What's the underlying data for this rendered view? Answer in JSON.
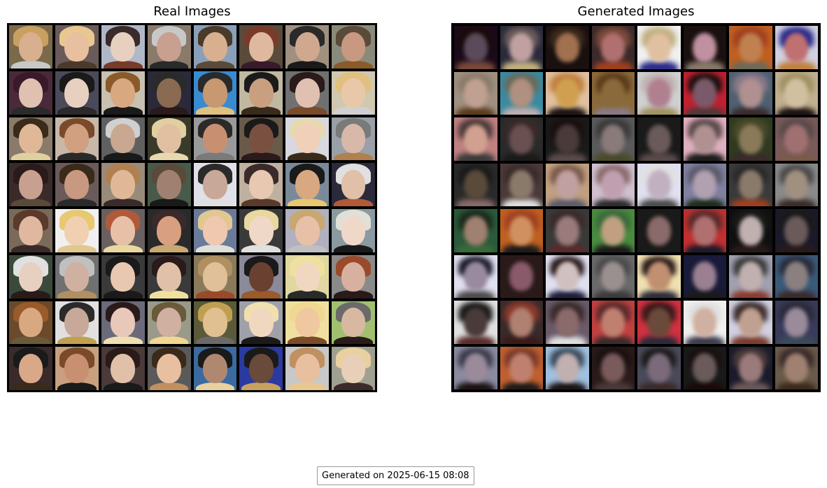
{
  "panels": {
    "real": {
      "title": "Real Images"
    },
    "generated": {
      "title": "Generated Images"
    }
  },
  "footer": {
    "text": "Generated on 2025-06-15 08:08"
  },
  "colors": {
    "real_bg": [
      "#7a6a4a",
      "#6a5a5a",
      "#b0b8c8",
      "#8a7a6a",
      "#8aa0b8",
      "#5a4a3a",
      "#a09080",
      "#8a8a7a",
      "#4a2a3a",
      "#4a4a5a",
      "#c8c0b0",
      "#2a2a3a",
      "#3a8ad0",
      "#c0b8a0",
      "#707070",
      "#d0c8b0",
      "#8a7a6a",
      "#c8b8a8",
      "#606060",
      "#3a3a2a",
      "#9a9a9a",
      "#6a5a4a",
      "#d8d8e0",
      "#9aa0a8",
      "#3a2a2a",
      "#6a5a5a",
      "#9a8a7a",
      "#4a5a4a",
      "#e0e0e8",
      "#c0b0a0",
      "#7a8a9a",
      "#2a2a3a",
      "#7a6a5a",
      "#f0f0f0",
      "#6a6060",
      "#2a2a2a",
      "#6a7a9a",
      "#3a3a3a",
      "#b0b0c0",
      "#8a9aa0",
      "#3a4a3a",
      "#707070",
      "#3a3a3a",
      "#3a3a3a",
      "#8a7a5a",
      "#8a8a9a",
      "#e0d8a0",
      "#8a8a8a",
      "#6a4a2a",
      "#e0e0e0",
      "#6a6a7a",
      "#9a9a8a",
      "#5a5a3a",
      "#a0a0a8",
      "#f0e0a0",
      "#a0c070",
      "#3a2a2a",
      "#c8a080",
      "#4a3a3a",
      "#5a5a5a",
      "#3a6aa0",
      "#2a3aa0",
      "#c8c8c8",
      "#a0a090"
    ],
    "real_face": [
      "#d8b090",
      "#e8c0a0",
      "#e8d0c0",
      "#c8a090",
      "#d8b090",
      "#e0b8a0",
      "#d0a890",
      "#c89880",
      "#e0c0b0",
      "#e8d0c0",
      "#d8a880",
      "#8a6a50",
      "#c89870",
      "#c8a080",
      "#e0c0b0",
      "#e8c8a8",
      "#e0b898",
      "#d0a080",
      "#c8a890",
      "#e0c0a0",
      "#c89070",
      "#7a5040",
      "#f0d0b8",
      "#d8b8a8",
      "#c8a090",
      "#c89880",
      "#e0b898",
      "#a08070",
      "#c8a898",
      "#e8c8b0",
      "#d8a880",
      "#e0c0a8",
      "#e0b8a0",
      "#f0d0b0",
      "#e8c0a8",
      "#d8a080",
      "#f0c8b0",
      "#f0d8c8",
      "#e8c0a8",
      "#f0d8c8",
      "#e8d0c0",
      "#d0b0a0",
      "#e8c8b0",
      "#e0c0a8",
      "#e0c098",
      "#6a4030",
      "#f0d8c0",
      "#d8b0a0",
      "#d8a880",
      "#c8a898",
      "#e8c8b8",
      "#d0b0a0",
      "#e0c090",
      "#f0d8c0",
      "#f0c8a0",
      "#d8b8a0",
      "#d8a888",
      "#c89070",
      "#e0c0a8",
      "#e8c0a0",
      "#b08870",
      "#6a4a3a",
      "#e8c0a0",
      "#e8d0b8"
    ],
    "real_hair": [
      "#c8a060",
      "#e8c890",
      "#3a2a2a",
      "#c8c8c8",
      "#4a3a2a",
      "#7a3a2a",
      "#2a2a2a",
      "#5a4a3a",
      "#3a1a2a",
      "#1a1a1a",
      "#8a5a2a",
      "#2a2a2a",
      "#2a2a2a",
      "#1a1a1a",
      "#2a1a1a",
      "#e0c080",
      "#3a2a1a",
      "#7a4a2a",
      "#d0d0d0",
      "#e0d0a0",
      "#2a2a2a",
      "#1a1a1a",
      "#e8d8b0",
      "#7a7a7a",
      "#2a1a1a",
      "#3a2a1a",
      "#b08050",
      "#5a4a3a",
      "#2a2a2a",
      "#3a2a2a",
      "#1a1a1a",
      "#e0e0e0",
      "#5a3a2a",
      "#e8c870",
      "#b05a3a",
      "#3a2a2a",
      "#e0c890",
      "#e8d8a0",
      "#c8a870",
      "#e0e0d8",
      "#e0e0e0",
      "#c0c0c0",
      "#1a1a1a",
      "#2a1a1a",
      "#b09060",
      "#1a1a1a",
      "#f0e0a0",
      "#9a4a2a",
      "#9a5a2a",
      "#2a2a2a",
      "#2a1a1a",
      "#6a5a3a",
      "#c0a050",
      "#f0e0b0",
      "#f0d890",
      "#6a6a6a",
      "#1a1a1a",
      "#7a4a2a",
      "#2a1a1a",
      "#3a2a1a",
      "#1a1a1a",
      "#1a1a1a",
      "#c09060",
      "#e8d0a0"
    ],
    "gen_bg": [
      "#1a0a1a",
      "#2a2a3a",
      "#1a1010",
      "#3a2a2a",
      "#f0f0f0",
      "#1a1010",
      "#c06020",
      "#d0d0e0",
      "#a09080",
      "#3a8aa0",
      "#e0c0a0",
      "#8a6a3a",
      "#d0d0d0",
      "#c02030",
      "#506070",
      "#c0b090",
      "#c08080",
      "#2a2a2a",
      "#1a1a1a",
      "#5a5a5a",
      "#1a1a1a",
      "#e0b0c0",
      "#303a20",
      "#7a5a5a",
      "#2a2a2a",
      "#4a3a3a",
      "#c0a080",
      "#d0c0d0",
      "#e0e0f0",
      "#8080a0",
      "#3a3a3a",
      "#8a8a8a",
      "#2a5a3a",
      "#c06020",
      "#3a3a3a",
      "#4a8a40",
      "#1a1a1a",
      "#c03030",
      "#101010",
      "#1a1a2a",
      "#e0e0f0",
      "#2a1a1a",
      "#e0e0f0",
      "#6a6a6a",
      "#f0e0b0",
      "#1a1a3a",
      "#a0a0b0",
      "#3a5a7a",
      "#e0e0e0",
      "#3a2a2a",
      "#6a5a6a",
      "#c04040",
      "#d03040",
      "#f0f0f0",
      "#d0d0e0",
      "#3a3a5a",
      "#8a8aa0",
      "#c06030",
      "#a0c0e0",
      "#2a1a1a",
      "#4a4a5a",
      "#1a1a1a",
      "#1a1a2a",
      "#6a5a4a"
    ],
    "gen_face": [
      "#5a4a5a",
      "#c0a0a0",
      "#a07050",
      "#b07070",
      "#e0c0a0",
      "#c090a0",
      "#c08050",
      "#c07070",
      "#c0a090",
      "#b09080",
      "#d0a050",
      "#8a6a3a",
      "#b08090",
      "#7a5a6a",
      "#b09090",
      "#d0c0a0",
      "#d0a090",
      "#6a5050",
      "#4a3a3a",
      "#8a7a7a",
      "#6a5a5a",
      "#b09090",
      "#8a7a5a",
      "#a07070",
      "#5a4a3a",
      "#8a7a6a",
      "#c0a0a0",
      "#c0a0b0",
      "#c0b0c0",
      "#b0a0b0",
      "#8a7a6a",
      "#a09080",
      "#a08070",
      "#d09060",
      "#9a7a7a",
      "#c0a080",
      "#8a6a6a",
      "#b07070",
      "#c0b0b0",
      "#6a5a5a",
      "#9a8aa0",
      "#8a5a6a",
      "#d0c0c0",
      "#9a9090",
      "#c09070",
      "#9a8090",
      "#c0b0b0",
      "#8a8080",
      "#4a3a3a",
      "#b08070",
      "#8a6a6a",
      "#c08070",
      "#6a4a3a",
      "#d0b0a0",
      "#c0a090",
      "#9a8a9a",
      "#9a8a9a",
      "#c08070",
      "#c0b0b0",
      "#7a5a5a",
      "#7a6a7a",
      "#6a5a5a",
      "#9a7a7a",
      "#a08070"
    ],
    "gen_hair": [
      "#1a0a0a",
      "#6a5a5a",
      "#3a2a1a",
      "#7a4a3a",
      "#c0b080",
      "#1a1010",
      "#a04020",
      "#2a2a8a",
      "#8a7a6a",
      "#6a6a5a",
      "#c08040",
      "#5a3a1a",
      "#c0b0b0",
      "#1a1010",
      "#8a7a8a",
      "#a09060",
      "#4a3a3a",
      "#3a2a2a",
      "#1a1010",
      "#3a3a3a",
      "#1a1a1a",
      "#5a4a4a",
      "#4a4a2a",
      "#5a4a4a",
      "#1a1a1a",
      "#3a2a2a",
      "#7a5a4a",
      "#8a6a6a",
      "#e0e0e0",
      "#5a5a6a",
      "#2a2a2a",
      "#4a4a4a",
      "#1a2a1a",
      "#a04020",
      "#3a2a2a",
      "#3a6a3a",
      "#1a1a1a",
      "#5a2a2a",
      "#1a1a1a",
      "#1a1a1a",
      "#1a1a2a",
      "#2a1a1a",
      "#2a1a1a",
      "#4a4a4a",
      "#2a1a1a",
      "#1a1a3a",
      "#3a3a3a",
      "#2a2a3a",
      "#1a1a1a",
      "#8a3a2a",
      "#3a2a2a",
      "#5a2a2a",
      "#3a1a1a",
      "#e0e0e0",
      "#3a2a2a",
      "#2a2a3a",
      "#3a3a4a",
      "#7a3a2a",
      "#3a4a5a",
      "#1a1010",
      "#1a1a1a",
      "#1a1010",
      "#4a3a3a",
      "#3a2a2a"
    ]
  }
}
